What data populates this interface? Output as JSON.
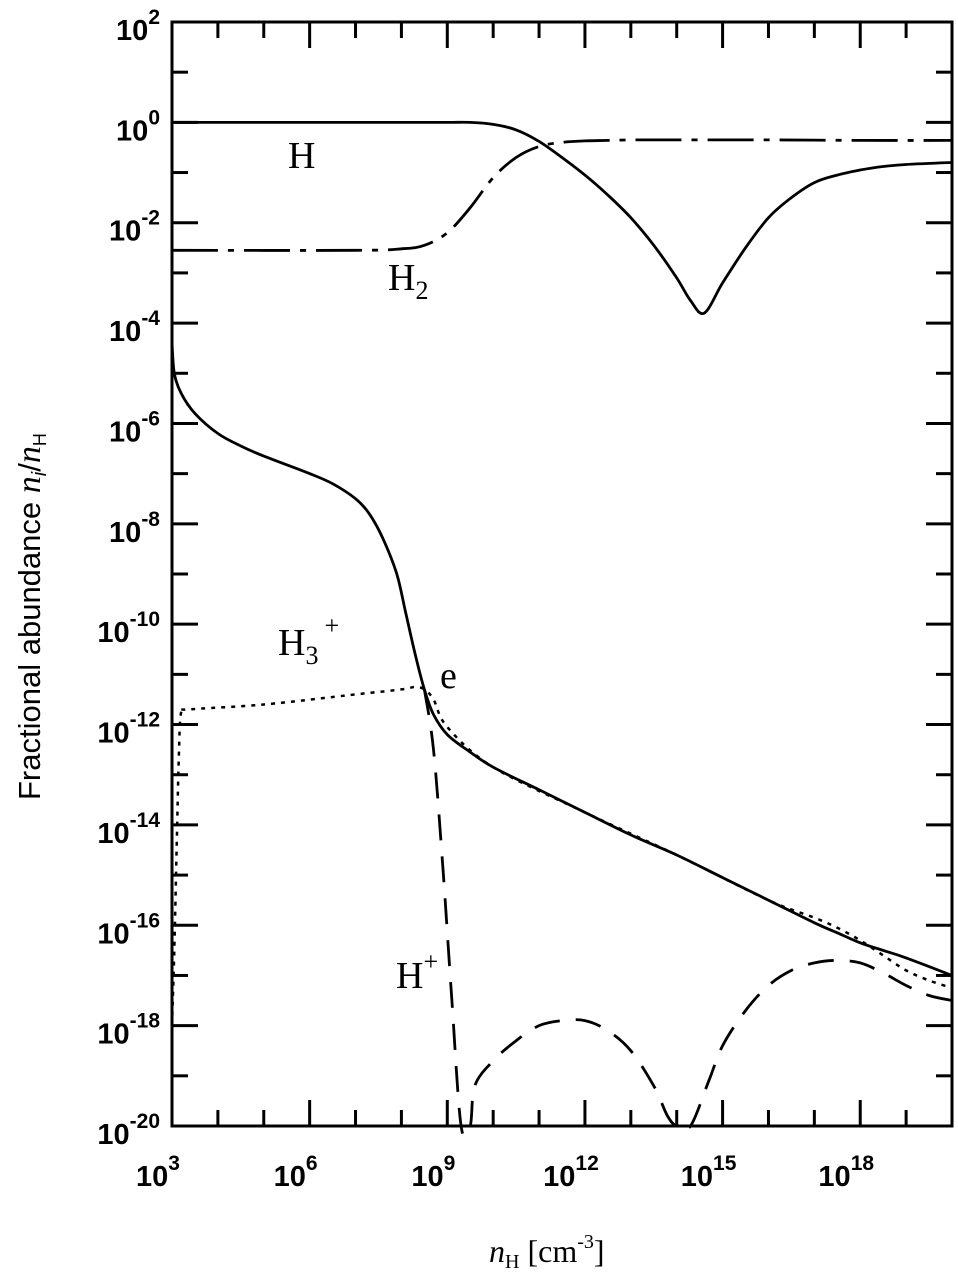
{
  "chart_data": {
    "type": "line",
    "title": "",
    "xlabel": {
      "var": "n",
      "sub": "H",
      "unit_open": " [cm",
      "unit_exp": "-3",
      "unit_close": "]"
    },
    "ylabel": {
      "text": "Fractional abundance ",
      "var": "n",
      "sub_i": "i",
      "slash": "/",
      "var2": "n",
      "sub_h": "H"
    },
    "x_scale": "log",
    "y_scale": "log",
    "xlim_log10": [
      3,
      20
    ],
    "ylim_log10": [
      -20,
      2
    ],
    "x_ticks": [
      {
        "exp": 3,
        "base": "10",
        "sup": "3"
      },
      {
        "exp": 6,
        "base": "10",
        "sup": "6"
      },
      {
        "exp": 9,
        "base": "10",
        "sup": "9"
      },
      {
        "exp": 12,
        "base": "10",
        "sup": "12"
      },
      {
        "exp": 15,
        "base": "10",
        "sup": "15"
      },
      {
        "exp": 18,
        "base": "10",
        "sup": "18"
      }
    ],
    "y_ticks": [
      {
        "exp": 2,
        "base": "10",
        "sup": "2"
      },
      {
        "exp": 0,
        "base": "10",
        "sup": "0"
      },
      {
        "exp": -2,
        "base": "10",
        "sup": "-2"
      },
      {
        "exp": -4,
        "base": "10",
        "sup": "-4"
      },
      {
        "exp": -6,
        "base": "10",
        "sup": "-6"
      },
      {
        "exp": -8,
        "base": "10",
        "sup": "-8"
      },
      {
        "exp": -10,
        "base": "10",
        "sup": "-10"
      },
      {
        "exp": -12,
        "base": "10",
        "sup": "-12"
      },
      {
        "exp": -14,
        "base": "10",
        "sup": "-14"
      },
      {
        "exp": -16,
        "base": "10",
        "sup": "-16"
      },
      {
        "exp": -18,
        "base": "10",
        "sup": "-18"
      },
      {
        "exp": -20,
        "base": "10",
        "sup": "-20"
      }
    ],
    "series": [
      {
        "name": "H",
        "style": "solid",
        "x_log10": [
          3,
          8,
          9,
          9.5,
          10,
          10.5,
          11,
          11.5,
          12,
          12.5,
          13,
          13.5,
          14,
          14.3,
          14.6,
          15,
          15.5,
          16,
          16.5,
          17,
          17.5,
          18,
          18.5,
          19,
          20
        ],
        "y_log10": [
          0,
          0,
          0,
          0,
          -0.04,
          -0.15,
          -0.38,
          -0.7,
          -1.05,
          -1.45,
          -1.9,
          -2.45,
          -3.1,
          -3.55,
          -3.8,
          -3.2,
          -2.5,
          -1.9,
          -1.5,
          -1.2,
          -1.05,
          -0.95,
          -0.88,
          -0.84,
          -0.8
        ]
      },
      {
        "name": "H2",
        "label_base": "H",
        "label_sub": "2",
        "style": "dashdot",
        "x_log10": [
          3,
          7,
          8,
          8.5,
          9,
          9.5,
          10,
          10.5,
          11,
          11.5,
          12,
          12.5,
          13,
          14,
          16,
          18,
          20
        ],
        "y_log10": [
          -2.55,
          -2.55,
          -2.52,
          -2.45,
          -2.2,
          -1.7,
          -1.1,
          -0.7,
          -0.48,
          -0.4,
          -0.37,
          -0.36,
          -0.35,
          -0.35,
          -0.35,
          -0.36,
          -0.36
        ]
      },
      {
        "name": "e",
        "style": "solid",
        "x_log10": [
          3,
          3.05,
          3.2,
          3.5,
          4,
          4.5,
          5,
          6,
          6.5,
          7,
          7.3,
          7.6,
          7.9,
          8.1,
          8.3,
          8.5,
          8.7,
          9,
          9.5,
          10,
          11,
          12,
          13,
          14,
          15,
          16,
          17,
          17.5,
          18,
          18.5,
          19,
          20
        ],
        "y_log10": [
          -4.4,
          -5.0,
          -5.4,
          -5.8,
          -6.2,
          -6.45,
          -6.65,
          -7.0,
          -7.2,
          -7.5,
          -7.8,
          -8.3,
          -9.0,
          -9.8,
          -10.6,
          -11.3,
          -11.8,
          -12.2,
          -12.55,
          -12.85,
          -13.3,
          -13.75,
          -14.2,
          -14.6,
          -15.05,
          -15.5,
          -15.95,
          -16.15,
          -16.35,
          -16.5,
          -16.65,
          -17.0
        ]
      },
      {
        "name": "H3+",
        "label_base": "H",
        "label_sub": "3",
        "label_sup": "+",
        "style": "dotted",
        "x_log10": [
          3,
          3.05,
          3.1,
          3.15,
          3.2,
          3.35,
          5,
          7,
          8,
          8.3,
          8.5,
          8.7,
          9,
          10,
          12,
          14,
          16,
          17,
          17.5,
          18,
          18.5,
          19,
          19.5,
          20
        ],
        "y_log10": [
          -18.0,
          -16.5,
          -14.5,
          -12.6,
          -11.75,
          -11.7,
          -11.6,
          -11.4,
          -11.3,
          -11.25,
          -11.3,
          -11.5,
          -12.05,
          -12.85,
          -13.75,
          -14.6,
          -15.5,
          -15.85,
          -16.05,
          -16.3,
          -16.6,
          -16.9,
          -17.1,
          -17.25
        ]
      },
      {
        "name": "H+",
        "label_base": "H",
        "label_sup": "+",
        "style": "dashed",
        "x_log10": [
          8.5,
          8.7,
          8.9,
          9.1,
          9.3,
          9.5,
          9.6,
          10,
          10.5,
          11,
          11.5,
          12,
          12.5,
          13,
          13.5,
          13.8,
          14,
          14.3,
          14.7,
          15,
          15.5,
          16,
          16.5,
          17,
          17.5,
          18,
          18.5,
          19,
          19.5,
          20
        ],
        "y_log10": [
          -11.3,
          -12.5,
          -14.8,
          -17.5,
          -20,
          -20,
          -19.2,
          -18.7,
          -18.3,
          -18.0,
          -17.9,
          -17.9,
          -18.1,
          -18.5,
          -19.2,
          -19.8,
          -20,
          -20,
          -19.1,
          -18.4,
          -17.7,
          -17.2,
          -16.9,
          -16.75,
          -16.7,
          -16.75,
          -16.95,
          -17.2,
          -17.4,
          -17.5
        ]
      }
    ]
  }
}
